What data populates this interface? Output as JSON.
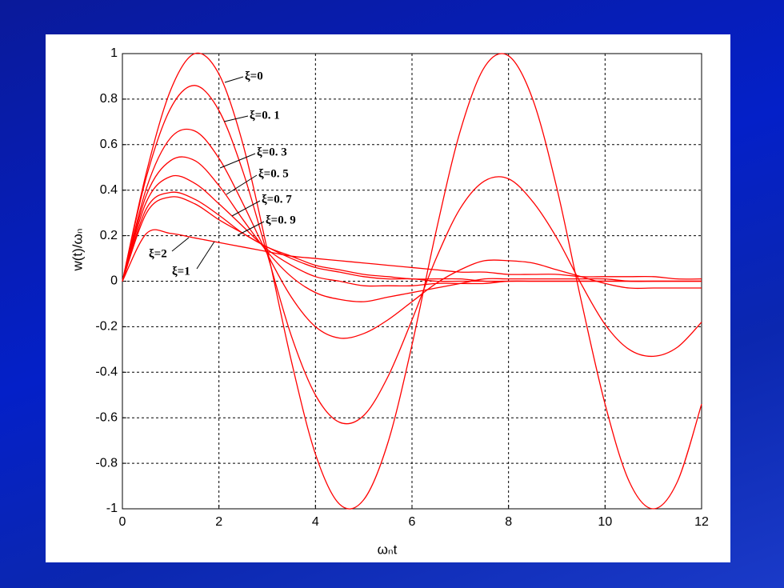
{
  "chart_data": {
    "type": "line",
    "xlabel": "ωₙt",
    "ylabel": "w(t)/ωₙ",
    "x": [
      0,
      0.5,
      1,
      1.5,
      2,
      2.5,
      3,
      3.5,
      4,
      4.5,
      5,
      5.5,
      6,
      6.5,
      7,
      7.5,
      8,
      8.5,
      9,
      9.5,
      10,
      10.5,
      11,
      11.5,
      12
    ],
    "series": [
      {
        "name": "ξ=0",
        "color": "#ff0000",
        "values": [
          0,
          0.48,
          0.84,
          1.0,
          0.91,
          0.6,
          0.14,
          -0.35,
          -0.76,
          -0.98,
          -0.96,
          -0.71,
          -0.28,
          0.22,
          0.66,
          0.94,
          0.99,
          0.8,
          0.41,
          -0.08,
          -0.54,
          -0.88,
          -1.0,
          -0.88,
          -0.54
        ]
      },
      {
        "name": "ξ=0. 1",
        "color": "#ff0000",
        "values": [
          0,
          0.46,
          0.76,
          0.86,
          0.75,
          0.48,
          0.12,
          -0.24,
          -0.5,
          -0.62,
          -0.59,
          -0.42,
          -0.17,
          0.1,
          0.32,
          0.44,
          0.45,
          0.35,
          0.19,
          -0.01,
          -0.19,
          -0.3,
          -0.33,
          -0.29,
          -0.18
        ]
      },
      {
        "name": "ξ=0. 3",
        "color": "#ff0000",
        "values": [
          0,
          0.41,
          0.63,
          0.66,
          0.54,
          0.34,
          0.12,
          -0.07,
          -0.2,
          -0.25,
          -0.23,
          -0.17,
          -0.09,
          -0.01,
          0.05,
          0.09,
          0.09,
          0.08,
          0.05,
          0.02,
          -0.01,
          -0.03,
          -0.03,
          -0.03,
          -0.03
        ]
      },
      {
        "name": "ξ=0. 5",
        "color": "#ff0000",
        "values": [
          0,
          0.38,
          0.53,
          0.53,
          0.42,
          0.27,
          0.13,
          0.02,
          -0.05,
          -0.08,
          -0.09,
          -0.07,
          -0.05,
          -0.03,
          -0.01,
          0.01,
          0.01,
          0.01,
          0.01,
          0.01,
          0.01,
          0,
          0,
          0,
          0
        ]
      },
      {
        "name": "ξ=0. 7",
        "color": "#ff0000",
        "values": [
          0,
          0.35,
          0.46,
          0.43,
          0.34,
          0.24,
          0.14,
          0.07,
          0.02,
          0,
          -0.02,
          -0.02,
          -0.02,
          -0.01,
          -0.01,
          -0.01,
          0,
          0,
          0,
          0,
          0,
          0,
          0,
          0,
          0
        ]
      },
      {
        "name": "ξ=0. 9",
        "color": "#ff0000",
        "values": [
          0,
          0.32,
          0.39,
          0.36,
          0.29,
          0.21,
          0.15,
          0.1,
          0.06,
          0.04,
          0.02,
          0.01,
          0.01,
          0,
          0,
          0,
          0,
          0,
          0,
          0,
          0,
          0,
          0,
          0,
          0
        ]
      },
      {
        "name": "ξ=1",
        "color": "#ff0000",
        "values": [
          0,
          0.3,
          0.37,
          0.34,
          0.27,
          0.21,
          0.15,
          0.11,
          0.07,
          0.05,
          0.03,
          0.02,
          0.01,
          0.01,
          0.01,
          0,
          0,
          0,
          0,
          0,
          0,
          0,
          0,
          0,
          0
        ]
      },
      {
        "name": "ξ=2",
        "color": "#ff0000",
        "values": [
          0,
          0.21,
          0.21,
          0.19,
          0.17,
          0.15,
          0.13,
          0.11,
          0.1,
          0.09,
          0.08,
          0.07,
          0.06,
          0.05,
          0.04,
          0.04,
          0.03,
          0.03,
          0.03,
          0.02,
          0.02,
          0.02,
          0.02,
          0.01,
          0.01
        ]
      }
    ],
    "xlim": [
      0,
      12
    ],
    "xticks": [
      0,
      2,
      4,
      6,
      8,
      10,
      12
    ],
    "ylim": [
      -1,
      1
    ],
    "yticks": [
      -1,
      -0.8,
      -0.6,
      -0.4,
      -0.2,
      0,
      0.2,
      0.4,
      0.6,
      0.8,
      1
    ],
    "grid": true
  }
}
